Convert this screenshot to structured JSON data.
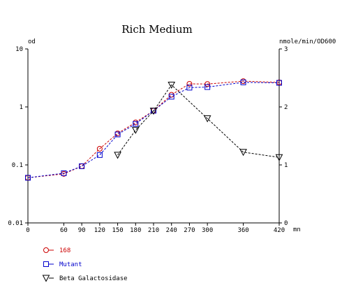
{
  "chart_data": {
    "type": "line",
    "title": "Rich Medium",
    "left_axis_label": "od",
    "right_axis_label": "nmole/min/OD600",
    "x_unit_label": "mn",
    "x_ticks": [
      "0",
      "60",
      "90",
      "120",
      "150",
      "180",
      "210",
      "240",
      "270",
      "300",
      "360",
      "420"
    ],
    "x_range": [
      0,
      420
    ],
    "y_left_scale": "log",
    "y_left_range": [
      0.01,
      10
    ],
    "y_left_ticks": [
      "10",
      "1",
      "0.1",
      "0.01"
    ],
    "y_right_scale": "linear",
    "y_right_range": [
      0,
      3
    ],
    "y_right_ticks": [
      "3",
      "2",
      "1",
      "0"
    ],
    "grid": false,
    "legend_position": "bottom-left",
    "series": [
      {
        "name": "168",
        "axis": "left",
        "marker": "circle",
        "color": "#cc0000",
        "x": [
          0,
          60,
          90,
          120,
          150,
          180,
          210,
          240,
          270,
          300,
          360,
          420
        ],
        "y": [
          0.06,
          0.07,
          0.095,
          0.19,
          0.35,
          0.54,
          0.86,
          1.62,
          2.5,
          2.48,
          2.78,
          2.65
        ]
      },
      {
        "name": "Mutant",
        "axis": "left",
        "marker": "square",
        "color": "#0000cc",
        "x": [
          0,
          60,
          90,
          120,
          150,
          180,
          210,
          240,
          270,
          300,
          360,
          420
        ],
        "y": [
          0.06,
          0.072,
          0.095,
          0.148,
          0.335,
          0.51,
          0.86,
          1.5,
          2.15,
          2.2,
          2.65,
          2.6
        ]
      },
      {
        "name": "Beta Galactosidase",
        "axis": "right",
        "marker": "triangle-down",
        "color": "#000000",
        "x": [
          150,
          180,
          210,
          240,
          300,
          360,
          420
        ],
        "y": [
          1.17,
          1.6,
          1.93,
          2.38,
          1.8,
          1.22,
          1.13
        ]
      }
    ]
  }
}
